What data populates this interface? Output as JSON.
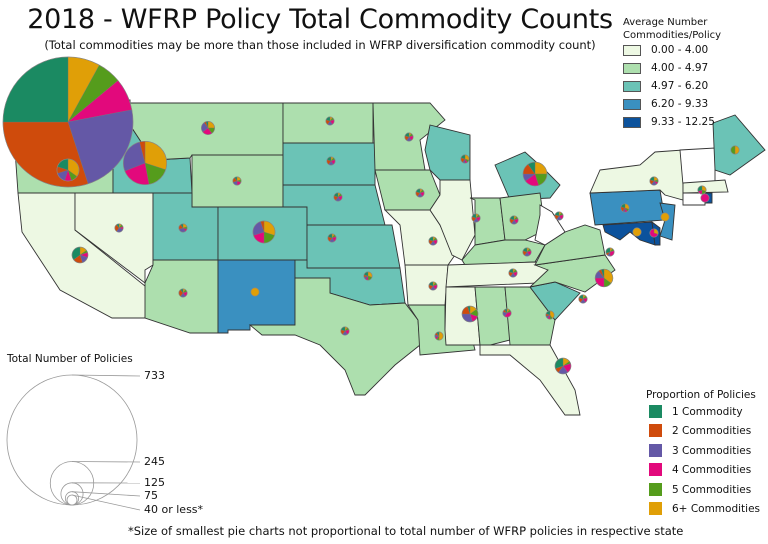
{
  "title": "2018 - WFRP Policy Total Commodity Counts",
  "subtitle": "(Total commodities may be more than those included in WFRP diversification commodity count)",
  "choropleth_legend": {
    "title_line1": "Average Number",
    "title_line2": "Commodities/Policy",
    "bins": [
      {
        "label": "0.00 - 4.00",
        "color": "#edf8e3"
      },
      {
        "label": "4.00 - 4.97",
        "color": "#addfae"
      },
      {
        "label": "4.97 - 6.20",
        "color": "#6bc3b6"
      },
      {
        "label": "6.20 - 9.33",
        "color": "#3a90c0"
      },
      {
        "label": "9.33 - 12.25",
        "color": "#0c529c"
      }
    ],
    "no_data_color": "#ffffff"
  },
  "proportion_legend": {
    "title": "Proportion of Policies",
    "categories": [
      {
        "label": "1 Commodity",
        "color": "#1b8a62"
      },
      {
        "label": "2 Commodities",
        "color": "#cf4b0c"
      },
      {
        "label": "3  Commodities",
        "color": "#6458a6"
      },
      {
        "label": "4 Commodities",
        "color": "#e2097c"
      },
      {
        "label": "5 Commodities",
        "color": "#559c1c"
      },
      {
        "label": "6+ Commodities",
        "color": "#e09f07"
      }
    ]
  },
  "size_legend": {
    "title": "Total Number of Policies",
    "sizes": [
      {
        "label": "733",
        "value": 733
      },
      {
        "label": "245",
        "value": 245
      },
      {
        "label": "125",
        "value": 125
      },
      {
        "label": "75",
        "value": 75
      },
      {
        "label": "40 or less*",
        "value": 40
      }
    ]
  },
  "footnote": "*Size of smallest pie charts not proportional to total number of WFRP policies in respective state",
  "states": [
    {
      "id": "WA",
      "bin": 1
    },
    {
      "id": "OR",
      "bin": 1
    },
    {
      "id": "CA",
      "bin": 0
    },
    {
      "id": "NV",
      "bin": 0
    },
    {
      "id": "ID",
      "bin": 2
    },
    {
      "id": "MT",
      "bin": 1
    },
    {
      "id": "WY",
      "bin": 1
    },
    {
      "id": "UT",
      "bin": 2
    },
    {
      "id": "CO",
      "bin": 2
    },
    {
      "id": "AZ",
      "bin": 1
    },
    {
      "id": "NM",
      "bin": 3
    },
    {
      "id": "ND",
      "bin": 1
    },
    {
      "id": "SD",
      "bin": 2
    },
    {
      "id": "NE",
      "bin": 2
    },
    {
      "id": "KS",
      "bin": 2
    },
    {
      "id": "OK",
      "bin": 2
    },
    {
      "id": "TX",
      "bin": 1
    },
    {
      "id": "MN",
      "bin": 1
    },
    {
      "id": "IA",
      "bin": 1
    },
    {
      "id": "MO",
      "bin": 0
    },
    {
      "id": "AR",
      "bin": 0
    },
    {
      "id": "LA",
      "bin": 1
    },
    {
      "id": "WI",
      "bin": 2
    },
    {
      "id": "IL",
      "bin": 0
    },
    {
      "id": "MI",
      "bin": 2
    },
    {
      "id": "IN",
      "bin": 1
    },
    {
      "id": "OH",
      "bin": 1
    },
    {
      "id": "KY",
      "bin": 1
    },
    {
      "id": "TN",
      "bin": 0
    },
    {
      "id": "MS",
      "bin": 0
    },
    {
      "id": "AL",
      "bin": 1
    },
    {
      "id": "GA",
      "bin": 1
    },
    {
      "id": "FL",
      "bin": 0
    },
    {
      "id": "SC",
      "bin": 2
    },
    {
      "id": "NC",
      "bin": 1
    },
    {
      "id": "VA",
      "bin": 1
    },
    {
      "id": "WV",
      "bin": null
    },
    {
      "id": "PA",
      "bin": 3
    },
    {
      "id": "NY",
      "bin": 0
    },
    {
      "id": "NJ",
      "bin": 3
    },
    {
      "id": "MD",
      "bin": 4
    },
    {
      "id": "DE",
      "bin": 4
    },
    {
      "id": "VTNH",
      "bin": null
    },
    {
      "id": "ME",
      "bin": 2
    },
    {
      "id": "MA",
      "bin": 0
    },
    {
      "id": "CT",
      "bin": null
    },
    {
      "id": "RI",
      "bin": 4
    }
  ],
  "pies": [
    {
      "state": "WA",
      "total": 733,
      "shares": [
        0.25,
        0.3,
        0.23,
        0.08,
        0.06,
        0.08
      ]
    },
    {
      "state": "ID",
      "total": 245,
      "shares": [
        0.0,
        0.04,
        0.27,
        0.22,
        0.17,
        0.3
      ]
    },
    {
      "state": "OR",
      "total": 125,
      "shares": [
        0.2,
        0.1,
        0.15,
        0.1,
        0.1,
        0.35
      ]
    },
    {
      "state": "CO",
      "total": 125,
      "shares": [
        0.0,
        0.05,
        0.25,
        0.2,
        0.2,
        0.3
      ]
    },
    {
      "state": "MI",
      "total": 135,
      "shares": [
        0.1,
        0.15,
        0.1,
        0.2,
        0.2,
        0.25
      ]
    },
    {
      "state": "NC",
      "total": 100,
      "shares": [
        0.05,
        0.05,
        0.15,
        0.25,
        0.15,
        0.35
      ]
    },
    {
      "state": "MS",
      "total": 90,
      "shares": [
        0.05,
        0.2,
        0.3,
        0.15,
        0.15,
        0.15
      ]
    },
    {
      "state": "FL",
      "total": 90,
      "shares": [
        0.3,
        0.1,
        0.2,
        0.2,
        0.05,
        0.15
      ]
    },
    {
      "state": "CA",
      "total": 90,
      "shares": [
        0.35,
        0.2,
        0.15,
        0.1,
        0.05,
        0.15
      ]
    },
    {
      "state": "MT",
      "total": 75,
      "shares": [
        0.05,
        0.05,
        0.25,
        0.25,
        0.15,
        0.25
      ]
    },
    {
      "state": "NV",
      "total": 40,
      "shares": [
        0.1,
        0.3,
        0.3,
        0.1,
        0.1,
        0.1
      ]
    },
    {
      "state": "UT",
      "total": 40,
      "shares": [
        0.1,
        0.2,
        0.3,
        0.1,
        0.1,
        0.2
      ]
    },
    {
      "state": "WY",
      "total": 40,
      "shares": [
        0.1,
        0.2,
        0.2,
        0.2,
        0.1,
        0.2
      ]
    },
    {
      "state": "AZ",
      "total": 40,
      "shares": [
        0.1,
        0.3,
        0.2,
        0.2,
        0.1,
        0.1
      ]
    },
    {
      "state": "NM",
      "total": 40,
      "shares": [
        0,
        0,
        0,
        0,
        0,
        1
      ]
    },
    {
      "state": "ND",
      "total": 40,
      "shares": [
        0.2,
        0.2,
        0.2,
        0.2,
        0.1,
        0.1
      ]
    },
    {
      "state": "SD",
      "total": 40,
      "shares": [
        0.2,
        0.2,
        0.2,
        0.2,
        0.1,
        0.1
      ]
    },
    {
      "state": "NE",
      "total": 40,
      "shares": [
        0.2,
        0.2,
        0.2,
        0.2,
        0.1,
        0.1
      ]
    },
    {
      "state": "KS",
      "total": 40,
      "shares": [
        0.2,
        0.2,
        0.2,
        0.2,
        0.1,
        0.1
      ]
    },
    {
      "state": "OK",
      "total": 40,
      "shares": [
        0.2,
        0.1,
        0.1,
        0.1,
        0.2,
        0.3
      ]
    },
    {
      "state": "TX",
      "total": 40,
      "shares": [
        0.2,
        0.2,
        0.2,
        0.2,
        0.1,
        0.1
      ]
    },
    {
      "state": "MN",
      "total": 40,
      "shares": [
        0.2,
        0.2,
        0.2,
        0.2,
        0.1,
        0.1
      ]
    },
    {
      "state": "IA",
      "total": 40,
      "shares": [
        0.2,
        0.2,
        0.2,
        0.2,
        0.1,
        0.1
      ]
    },
    {
      "state": "MO",
      "total": 40,
      "shares": [
        0.2,
        0.2,
        0.2,
        0.2,
        0.1,
        0.1
      ]
    },
    {
      "state": "AR",
      "total": 40,
      "shares": [
        0.2,
        0.2,
        0.2,
        0.2,
        0.1,
        0.1
      ]
    },
    {
      "state": "LA",
      "total": 40,
      "shares": [
        0.1,
        0.1,
        0.1,
        0.1,
        0.1,
        0.5
      ]
    },
    {
      "state": "WI",
      "total": 40,
      "shares": [
        0.2,
        0.2,
        0.1,
        0.1,
        0.1,
        0.3
      ]
    },
    {
      "state": "IL",
      "total": 40,
      "shares": [
        0.2,
        0.2,
        0.2,
        0.2,
        0.1,
        0.1
      ]
    },
    {
      "state": "IN",
      "total": 40,
      "shares": [
        0.2,
        0.2,
        0.2,
        0.2,
        0.1,
        0.1
      ]
    },
    {
      "state": "OH",
      "total": 40,
      "shares": [
        0.2,
        0.2,
        0.2,
        0.2,
        0.1,
        0.1
      ]
    },
    {
      "state": "KY",
      "total": 40,
      "shares": [
        0.2,
        0.2,
        0.2,
        0.2,
        0.1,
        0.1
      ]
    },
    {
      "state": "TN",
      "total": 40,
      "shares": [
        0.2,
        0.2,
        0.2,
        0.2,
        0.1,
        0.1
      ]
    },
    {
      "state": "AL",
      "total": 40,
      "shares": [
        0.1,
        0.1,
        0.2,
        0.4,
        0.1,
        0.1
      ]
    },
    {
      "state": "GA",
      "total": 40,
      "shares": [
        0.2,
        0.1,
        0.1,
        0.1,
        0.1,
        0.4
      ]
    },
    {
      "state": "SC",
      "total": 40,
      "shares": [
        0.2,
        0.2,
        0.2,
        0.2,
        0.1,
        0.1
      ]
    },
    {
      "state": "VA",
      "total": 40,
      "shares": [
        0.3,
        0.1,
        0.1,
        0.3,
        0.1,
        0.1
      ]
    },
    {
      "state": "PA",
      "total": 40,
      "shares": [
        0.2,
        0.2,
        0.1,
        0.1,
        0.1,
        0.3
      ]
    },
    {
      "state": "NY",
      "total": 40,
      "shares": [
        0.2,
        0.2,
        0.2,
        0.1,
        0.1,
        0.2
      ]
    },
    {
      "state": "NJ",
      "total": 40,
      "shares": [
        0,
        0,
        0,
        0,
        0,
        1
      ]
    },
    {
      "state": "MD",
      "total": 40,
      "shares": [
        0,
        0,
        0,
        0,
        0,
        1
      ]
    },
    {
      "state": "DE",
      "total": 40,
      "shares": [
        0,
        0,
        0,
        0.7,
        0,
        0.3
      ]
    },
    {
      "state": "ME",
      "total": 40,
      "shares": [
        0,
        0,
        0,
        0,
        0.5,
        0.5
      ]
    },
    {
      "state": "MA",
      "total": 40,
      "shares": [
        0.3,
        0,
        0,
        0.2,
        0.2,
        0.3
      ]
    },
    {
      "state": "RI",
      "total": 40,
      "shares": [
        0,
        0,
        0,
        1,
        0,
        0
      ]
    }
  ]
}
